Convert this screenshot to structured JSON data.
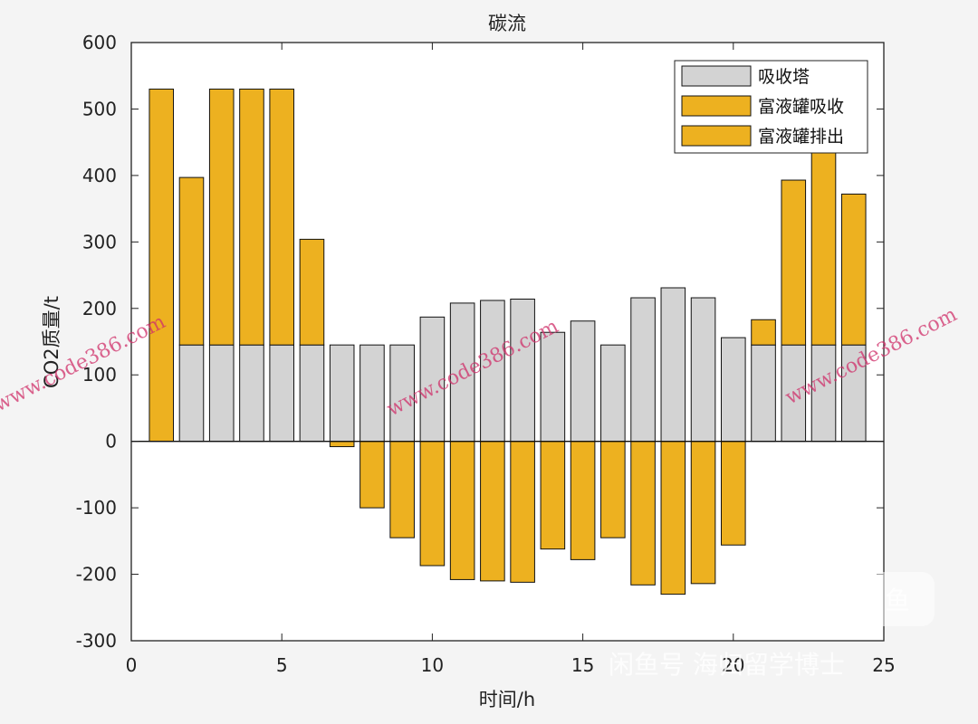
{
  "chart_data": {
    "type": "bar",
    "title": "碳流",
    "xlabel": "时间/h",
    "ylabel": "CO2质量/t",
    "xlim": [
      0,
      25
    ],
    "ylim": [
      -300,
      600
    ],
    "xticks": [
      0,
      5,
      10,
      15,
      20,
      25
    ],
    "yticks": [
      -300,
      -200,
      -100,
      0,
      100,
      200,
      300,
      400,
      500,
      600
    ],
    "x": [
      1,
      2,
      3,
      4,
      5,
      6,
      7,
      8,
      9,
      10,
      11,
      12,
      13,
      14,
      15,
      16,
      17,
      18,
      19,
      20,
      21,
      22,
      23,
      24
    ],
    "series": [
      {
        "name": "吸收塔",
        "color": "#d3d3d3",
        "values": [
          0,
          145,
          145,
          145,
          145,
          145,
          145,
          145,
          145,
          187,
          208,
          212,
          214,
          164,
          181,
          145,
          216,
          231,
          216,
          156,
          145,
          145,
          145,
          145
        ]
      },
      {
        "name": "富液罐吸收",
        "color": "#edb120",
        "values": [
          530,
          252,
          385,
          385,
          385,
          159,
          0,
          0,
          0,
          0,
          0,
          0,
          0,
          0,
          0,
          0,
          0,
          0,
          0,
          0,
          38,
          248,
          300,
          227
        ]
      },
      {
        "name": "富液罐排出",
        "color": "#edb120",
        "values": [
          0,
          0,
          0,
          0,
          0,
          0,
          -8,
          -100,
          -145,
          -187,
          -208,
          -210,
          -212,
          -162,
          -178,
          -145,
          -216,
          -230,
          -214,
          -156,
          0,
          0,
          0,
          0
        ]
      }
    ],
    "legend_position": "top-right",
    "grid": false
  },
  "watermarks": {
    "site": "www.code386.com",
    "platform_logo": "闲鱼",
    "platform_text": "闲鱼号 海归留学博士"
  }
}
